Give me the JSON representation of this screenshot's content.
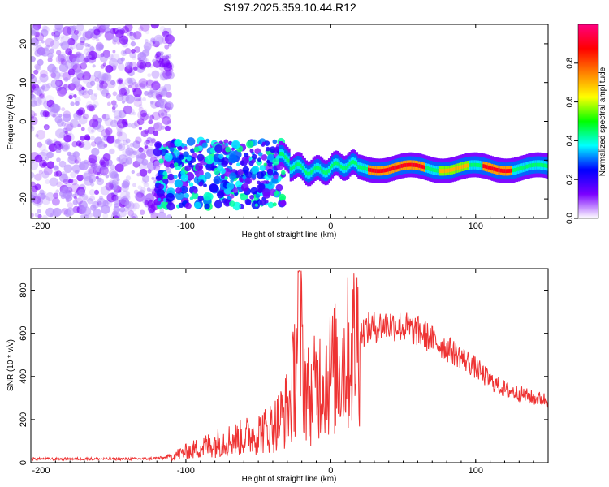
{
  "title": "S197.2025.359.10.44.R12",
  "chart_data": [
    {
      "type": "heatmap",
      "name": "spectrogram",
      "xlabel": "Height of straight line (km)",
      "ylabel": "Frequency (Hz)",
      "xlim": [
        -207,
        150
      ],
      "ylim": [
        -25,
        25
      ],
      "xticks": [
        -200,
        -100,
        0,
        100
      ],
      "yticks": [
        -20,
        -10,
        0,
        10,
        20
      ],
      "colorbar": {
        "label": "Normalized spectral amplitude",
        "range": [
          0,
          1
        ],
        "ticks": [
          0.0,
          0.2,
          0.4,
          0.6,
          0.8
        ],
        "tick_labels": [
          "0.0",
          "0.2",
          "0.4",
          "0.6",
          "0.8"
        ],
        "colormap": [
          "#ffffff",
          "#7a00ff",
          "#0000ff",
          "#00ffff",
          "#00ff00",
          "#ffff00",
          "#ff8000",
          "#ff0000",
          "#ff0080"
        ]
      },
      "regions": [
        {
          "desc": "diffuse noise",
          "x_range": [
            -207,
            -120
          ],
          "y_range": [
            -25,
            25
          ],
          "amplitude": 0.05
        },
        {
          "desc": "broadband cluster",
          "x_range": [
            -120,
            -32
          ],
          "y_range": [
            -22,
            -5
          ],
          "amplitude": 0.15
        },
        {
          "desc": "narrow line",
          "x_range": [
            -35,
            150
          ],
          "freq_hz": -12,
          "amplitude": 0.85
        }
      ]
    },
    {
      "type": "line",
      "name": "snr",
      "xlabel": "Height of straight line (km)",
      "ylabel": "SNR (10 * v/v)",
      "xlim": [
        -207,
        150
      ],
      "ylim": [
        0,
        900
      ],
      "xticks": [
        -200,
        -100,
        0,
        100
      ],
      "yticks": [
        0,
        200,
        400,
        600,
        800
      ],
      "color": "#ee3333",
      "series": [
        {
          "name": "SNR",
          "x": [
            -207,
            -190,
            -170,
            -150,
            -130,
            -115,
            -105,
            -95,
            -85,
            -75,
            -65,
            -55,
            -45,
            -38,
            -32,
            -27,
            -24,
            -22,
            -20,
            -18,
            -16,
            -14,
            -10,
            -5,
            0,
            5,
            10,
            15,
            20,
            25,
            30,
            40,
            50,
            60,
            70,
            80,
            90,
            100,
            110,
            120,
            130,
            140,
            150
          ],
          "values": [
            18,
            17,
            18,
            17,
            18,
            22,
            40,
            60,
            80,
            100,
            110,
            130,
            150,
            180,
            230,
            290,
            500,
            750,
            540,
            380,
            330,
            300,
            360,
            400,
            420,
            440,
            480,
            540,
            600,
            620,
            630,
            640,
            630,
            610,
            570,
            530,
            490,
            440,
            380,
            340,
            320,
            300,
            290
          ]
        }
      ]
    }
  ]
}
